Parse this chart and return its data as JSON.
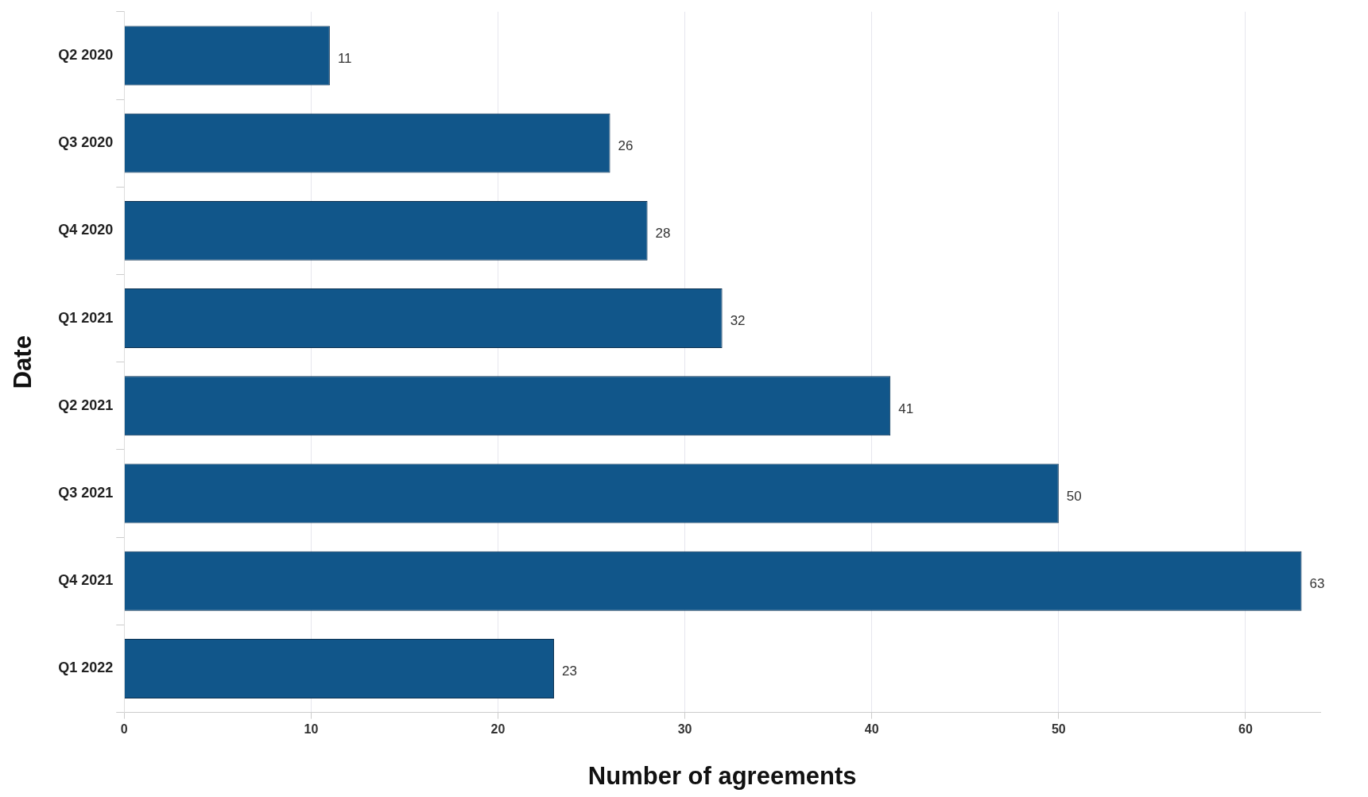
{
  "chart_data": {
    "type": "bar",
    "orientation": "horizontal",
    "xlabel": "Number of agreements",
    "ylabel": "Date",
    "categories": [
      "Q2 2020",
      "Q3 2020",
      "Q4 2020",
      "Q1 2021",
      "Q2 2021",
      "Q3 2021",
      "Q4 2021",
      "Q1 2022"
    ],
    "values": [
      11,
      26,
      28,
      32,
      41,
      50,
      63,
      23
    ],
    "color": "#11568a",
    "xlim": [
      0,
      64
    ],
    "xticks": [
      0,
      10,
      20,
      30,
      40,
      50,
      60
    ],
    "grid": "x",
    "data_labels": true
  }
}
